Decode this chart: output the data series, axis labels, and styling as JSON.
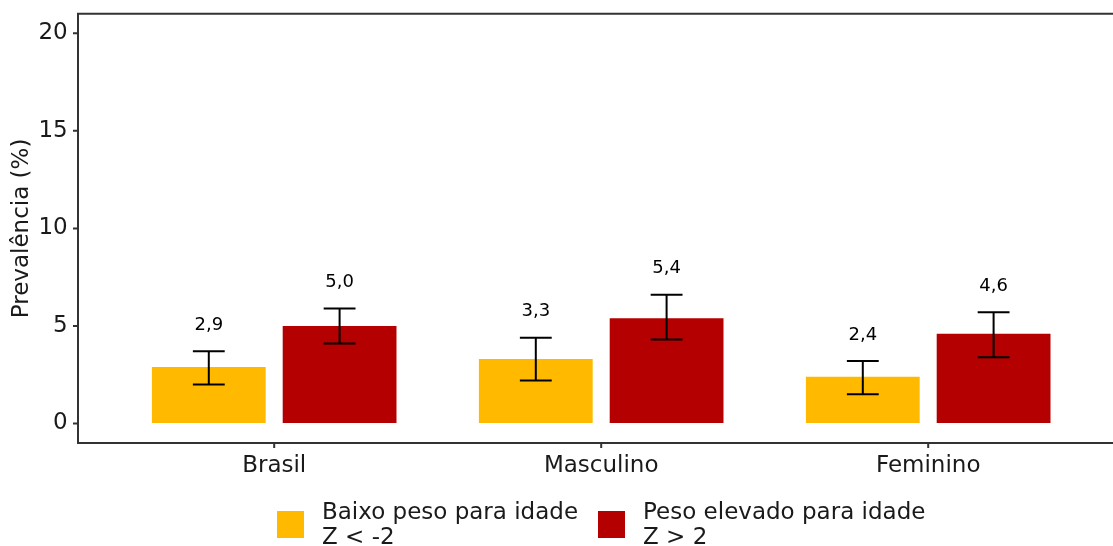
{
  "chart_data": {
    "type": "bar",
    "ylabel": "Prevalência (%)",
    "categories": [
      "Brasil",
      "Masculino",
      "Feminino"
    ],
    "series": [
      {
        "name": "Baixo peso para idade\nZ < -2",
        "color": "#ffba00",
        "values": [
          2.9,
          3.3,
          2.4
        ],
        "errors": [
          [
            2.0,
            3.7
          ],
          [
            2.2,
            4.4
          ],
          [
            1.5,
            3.2
          ]
        ],
        "value_labels": [
          "2,9",
          "3,3",
          "2,4"
        ]
      },
      {
        "name": "Peso elevado para idade\nZ > 2",
        "color": "#b40000",
        "values": [
          5.0,
          5.4,
          4.6
        ],
        "errors": [
          [
            4.1,
            5.9
          ],
          [
            4.3,
            6.6
          ],
          [
            3.4,
            5.7
          ]
        ],
        "value_labels": [
          "5,0",
          "5,4",
          "4,6"
        ]
      }
    ],
    "ylim": [
      -1,
      21
    ],
    "yticks": [
      0,
      5,
      10,
      15,
      20
    ],
    "grid": false,
    "legend": "bottom"
  }
}
